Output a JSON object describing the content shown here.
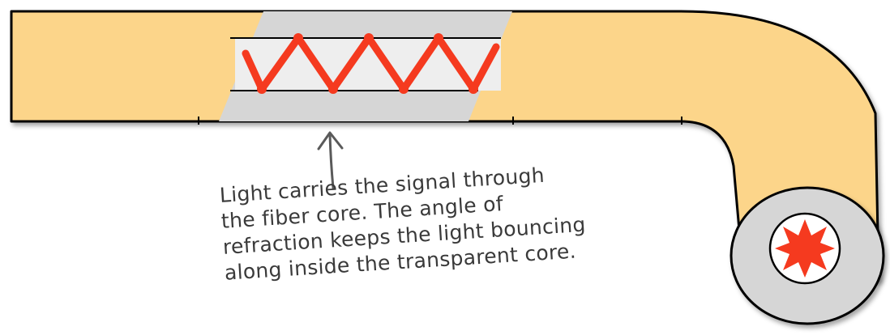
{
  "diagram": {
    "caption_lines": [
      "Light carries the signal through",
      "the fiber core. The angle of",
      "refraction keeps the light bouncing",
      "along inside the transparent core."
    ]
  },
  "colors": {
    "cable_jacket": "#fcd58a",
    "cladding": "#d6d6d6",
    "core": "#eeeeee",
    "light_signal": "#f53a1f",
    "outline": "#000000",
    "annotation": "#5a5a5a"
  },
  "icons": {
    "annotation_arrow": "up-arrow-icon",
    "light_source": "starburst-icon"
  }
}
